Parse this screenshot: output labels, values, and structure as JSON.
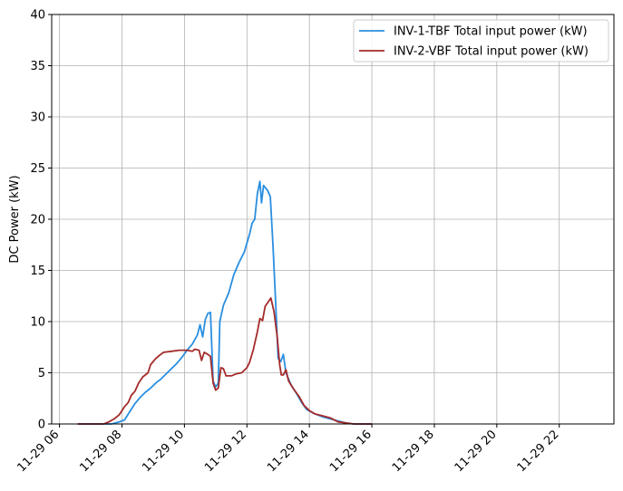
{
  "chart_data": {
    "type": "line",
    "title": "",
    "xlabel": "",
    "ylabel": "DC Power (kW)",
    "ylim": [
      0,
      40
    ],
    "xlim": [
      "2023-11-29 05:45",
      "2023-11-29 23:45"
    ],
    "x_ticks": [
      "2023-11-29 06:00",
      "2023-11-29 08:00",
      "2023-11-29 10:00",
      "2023-11-29 12:00",
      "2023-11-29 14:00",
      "2023-11-29 16:00",
      "2023-11-29 18:00",
      "2023-11-29 20:00",
      "2023-11-29 22:00"
    ],
    "x_tick_labels": [
      "11-29 06",
      "11-29 08",
      "11-29 10",
      "11-29 12",
      "11-29 14",
      "11-29 16",
      "11-29 18",
      "11-29 20",
      "11-29 22"
    ],
    "y_ticks": [
      0,
      5,
      10,
      15,
      20,
      25,
      30,
      35,
      40
    ],
    "y_tick_labels": [
      "0",
      "5",
      "10",
      "15",
      "20",
      "25",
      "30",
      "35",
      "40"
    ],
    "grid": true,
    "legend_position": "top-right",
    "series": [
      {
        "name": "INV-1-TBF Total input power (kW)",
        "color": "#2a8fe0",
        "points": [
          [
            "2023-11-29 06:35",
            0
          ],
          [
            "2023-11-29 07:40",
            0
          ],
          [
            "2023-11-29 07:55",
            0.2
          ],
          [
            "2023-11-29 08:05",
            0.4
          ],
          [
            "2023-11-29 08:15",
            1.2
          ],
          [
            "2023-11-29 08:25",
            2.0
          ],
          [
            "2023-11-29 08:35",
            2.6
          ],
          [
            "2023-11-29 08:45",
            3.1
          ],
          [
            "2023-11-29 08:55",
            3.5
          ],
          [
            "2023-11-29 09:05",
            4.0
          ],
          [
            "2023-11-29 09:15",
            4.4
          ],
          [
            "2023-11-29 09:25",
            4.9
          ],
          [
            "2023-11-29 09:35",
            5.4
          ],
          [
            "2023-11-29 09:45",
            5.9
          ],
          [
            "2023-11-29 09:55",
            6.5
          ],
          [
            "2023-11-29 10:05",
            7.2
          ],
          [
            "2023-11-29 10:15",
            7.8
          ],
          [
            "2023-11-29 10:25",
            8.7
          ],
          [
            "2023-11-29 10:30",
            9.7
          ],
          [
            "2023-11-29 10:35",
            8.5
          ],
          [
            "2023-11-29 10:40",
            10.2
          ],
          [
            "2023-11-29 10:45",
            10.8
          ],
          [
            "2023-11-29 10:50",
            10.9
          ],
          [
            "2023-11-29 10:55",
            4.2
          ],
          [
            "2023-11-29 11:00",
            3.6
          ],
          [
            "2023-11-29 11:05",
            4.0
          ],
          [
            "2023-11-29 11:08",
            10.0
          ],
          [
            "2023-11-29 11:15",
            11.6
          ],
          [
            "2023-11-29 11:25",
            12.8
          ],
          [
            "2023-11-29 11:35",
            14.6
          ],
          [
            "2023-11-29 11:45",
            15.8
          ],
          [
            "2023-11-29 11:55",
            16.8
          ],
          [
            "2023-11-29 12:05",
            18.5
          ],
          [
            "2023-11-29 12:10",
            19.6
          ],
          [
            "2023-11-29 12:15",
            20.0
          ],
          [
            "2023-11-29 12:20",
            22.5
          ],
          [
            "2023-11-29 12:25",
            23.7
          ],
          [
            "2023-11-29 12:28",
            21.6
          ],
          [
            "2023-11-29 12:32",
            23.3
          ],
          [
            "2023-11-29 12:40",
            22.8
          ],
          [
            "2023-11-29 12:45",
            22.2
          ],
          [
            "2023-11-29 12:50",
            17.5
          ],
          [
            "2023-11-29 12:55",
            12.0
          ],
          [
            "2023-11-29 13:00",
            6.4
          ],
          [
            "2023-11-29 13:05",
            6.1
          ],
          [
            "2023-11-29 13:10",
            6.8
          ],
          [
            "2023-11-29 13:15",
            5.0
          ],
          [
            "2023-11-29 13:25",
            3.8
          ],
          [
            "2023-11-29 13:35",
            3.0
          ],
          [
            "2023-11-29 13:45",
            2.1
          ],
          [
            "2023-11-29 13:55",
            1.4
          ],
          [
            "2023-11-29 14:10",
            1.0
          ],
          [
            "2023-11-29 14:25",
            0.7
          ],
          [
            "2023-11-29 14:40",
            0.5
          ],
          [
            "2023-11-29 14:55",
            0.3
          ],
          [
            "2023-11-29 15:10",
            0.1
          ],
          [
            "2023-11-29 15:25",
            0
          ],
          [
            "2023-11-29 16:00",
            0
          ]
        ]
      },
      {
        "name": "INV-2-VBF Total input power (kW)",
        "color": "#a52a2a",
        "points": [
          [
            "2023-11-29 06:35",
            0
          ],
          [
            "2023-11-29 07:25",
            0
          ],
          [
            "2023-11-29 07:35",
            0.2
          ],
          [
            "2023-11-29 07:45",
            0.5
          ],
          [
            "2023-11-29 07:55",
            0.9
          ],
          [
            "2023-11-29 08:05",
            1.7
          ],
          [
            "2023-11-29 08:12",
            2.1
          ],
          [
            "2023-11-29 08:18",
            2.8
          ],
          [
            "2023-11-29 08:25",
            3.2
          ],
          [
            "2023-11-29 08:32",
            4.0
          ],
          [
            "2023-11-29 08:40",
            4.6
          ],
          [
            "2023-11-29 08:50",
            5.0
          ],
          [
            "2023-11-29 08:55",
            5.8
          ],
          [
            "2023-11-29 09:05",
            6.4
          ],
          [
            "2023-11-29 09:12",
            6.7
          ],
          [
            "2023-11-29 09:20",
            7.0
          ],
          [
            "2023-11-29 09:35",
            7.1
          ],
          [
            "2023-11-29 09:50",
            7.2
          ],
          [
            "2023-11-29 10:05",
            7.2
          ],
          [
            "2023-11-29 10:15",
            7.1
          ],
          [
            "2023-11-29 10:20",
            7.3
          ],
          [
            "2023-11-29 10:28",
            7.2
          ],
          [
            "2023-11-29 10:33",
            6.2
          ],
          [
            "2023-11-29 10:38",
            7.0
          ],
          [
            "2023-11-29 10:45",
            6.8
          ],
          [
            "2023-11-29 10:50",
            6.6
          ],
          [
            "2023-11-29 10:55",
            4.0
          ],
          [
            "2023-11-29 11:00",
            3.3
          ],
          [
            "2023-11-29 11:05",
            3.5
          ],
          [
            "2023-11-29 11:10",
            5.5
          ],
          [
            "2023-11-29 11:15",
            5.4
          ],
          [
            "2023-11-29 11:20",
            4.7
          ],
          [
            "2023-11-29 11:30",
            4.7
          ],
          [
            "2023-11-29 11:40",
            4.9
          ],
          [
            "2023-11-29 11:50",
            5.0
          ],
          [
            "2023-11-29 12:00",
            5.5
          ],
          [
            "2023-11-29 12:05",
            6.0
          ],
          [
            "2023-11-29 12:12",
            7.2
          ],
          [
            "2023-11-29 12:20",
            9.0
          ],
          [
            "2023-11-29 12:25",
            10.3
          ],
          [
            "2023-11-29 12:30",
            10.1
          ],
          [
            "2023-11-29 12:35",
            11.5
          ],
          [
            "2023-11-29 12:42",
            12.0
          ],
          [
            "2023-11-29 12:46",
            12.3
          ],
          [
            "2023-11-29 12:52",
            11.0
          ],
          [
            "2023-11-29 12:58",
            8.6
          ],
          [
            "2023-11-29 13:03",
            5.8
          ],
          [
            "2023-11-29 13:06",
            4.8
          ],
          [
            "2023-11-29 13:10",
            4.8
          ],
          [
            "2023-11-29 13:15",
            5.3
          ],
          [
            "2023-11-29 13:20",
            4.2
          ],
          [
            "2023-11-29 13:30",
            3.4
          ],
          [
            "2023-11-29 13:40",
            2.7
          ],
          [
            "2023-11-29 13:50",
            1.8
          ],
          [
            "2023-11-29 14:00",
            1.3
          ],
          [
            "2023-11-29 14:10",
            1.0
          ],
          [
            "2023-11-29 14:25",
            0.8
          ],
          [
            "2023-11-29 14:40",
            0.6
          ],
          [
            "2023-11-29 14:55",
            0.2
          ],
          [
            "2023-11-29 15:10",
            0.1
          ],
          [
            "2023-11-29 15:25",
            0
          ],
          [
            "2023-11-29 16:00",
            0
          ]
        ]
      }
    ]
  }
}
